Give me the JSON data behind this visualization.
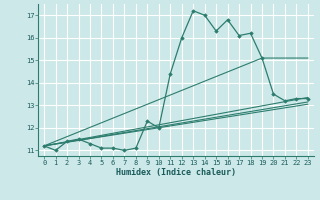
{
  "title": "",
  "xlabel": "Humidex (Indice chaleur)",
  "ylabel": "",
  "bg_color": "#cde8e8",
  "grid_color": "#ffffff",
  "line_color": "#2d7d6e",
  "xlim": [
    -0.5,
    23.5
  ],
  "ylim": [
    10.75,
    17.5
  ],
  "xticks": [
    0,
    1,
    2,
    3,
    4,
    5,
    6,
    7,
    8,
    9,
    10,
    11,
    12,
    13,
    14,
    15,
    16,
    17,
    18,
    19,
    20,
    21,
    22,
    23
  ],
  "yticks": [
    11,
    12,
    13,
    14,
    15,
    16,
    17
  ],
  "series1_x": [
    0,
    1,
    2,
    3,
    4,
    5,
    6,
    7,
    8,
    9,
    10,
    11,
    12,
    13,
    14,
    15,
    16,
    17,
    18,
    19,
    20,
    21,
    22,
    23
  ],
  "series1_y": [
    11.2,
    11.0,
    11.4,
    11.5,
    11.3,
    11.1,
    11.1,
    11.0,
    11.1,
    12.3,
    12.0,
    14.4,
    16.0,
    17.2,
    17.0,
    16.3,
    16.8,
    16.1,
    16.2,
    15.1,
    13.5,
    13.2,
    13.3,
    13.3
  ],
  "series2_x": [
    0,
    23
  ],
  "series2_y": [
    11.2,
    13.35
  ],
  "series3_x": [
    0,
    23
  ],
  "series3_y": [
    11.2,
    13.15
  ],
  "series4_x": [
    0,
    23
  ],
  "series4_y": [
    11.2,
    13.05
  ],
  "series5_x": [
    0,
    19,
    23
  ],
  "series5_y": [
    11.2,
    15.1,
    15.1
  ]
}
